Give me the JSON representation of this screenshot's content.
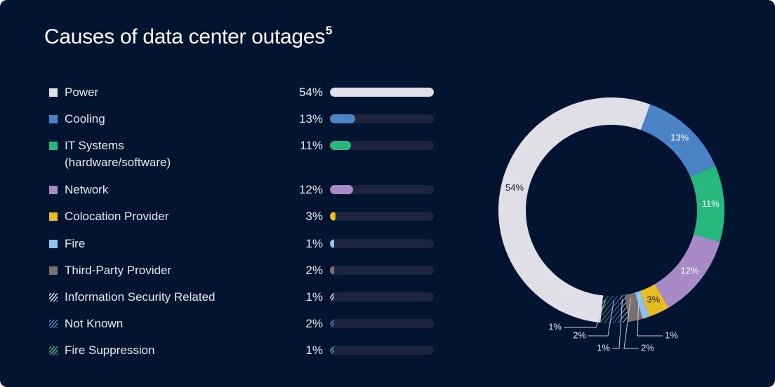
{
  "title": "Causes of data center outages",
  "title_superscript": "5",
  "chart_data": {
    "type": "donut",
    "categories": [
      "Power",
      "Cooling",
      "IT Systems (hardware/software)",
      "Network",
      "Colocation Provider",
      "Fire",
      "Third-Party Provider",
      "Information Security Related",
      "Not Known",
      "Fire Suppression"
    ],
    "legend_labels": [
      "Power",
      "Cooling",
      "IT Systems\n(hardware/software)",
      "Network",
      "Colocation Provider",
      "Fire",
      "Third-Party Provider",
      "Information Security Related",
      "Not Known",
      "Fire Suppression"
    ],
    "values": [
      54,
      13,
      11,
      12,
      3,
      1,
      2,
      1,
      2,
      1
    ],
    "value_labels": [
      "54%",
      "13%",
      "11%",
      "12%",
      "3%",
      "1%",
      "2%",
      "1%",
      "2%",
      "1%"
    ],
    "colors": [
      "#e0dfe6",
      "#4a83c6",
      "#27b880",
      "#a78ac6",
      "#e8bd1f",
      "#8cc3ee",
      "#77736c",
      "#e0dfe6",
      "#4a83c6",
      "#27b880"
    ],
    "hatched": [
      false,
      false,
      false,
      false,
      false,
      false,
      false,
      true,
      true,
      true
    ],
    "donut_order": [
      1,
      2,
      3,
      4,
      5,
      6,
      7,
      8,
      9,
      0
    ],
    "legend": "left",
    "bar_track_color": "#1d2440",
    "background": "#02142f"
  }
}
